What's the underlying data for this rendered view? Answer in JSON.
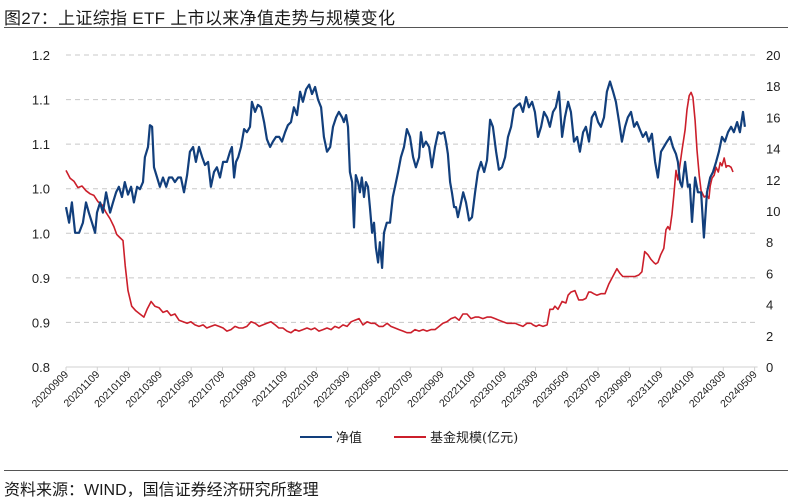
{
  "header": {
    "title": "图27：上证综指 ETF 上市以来净值走势与规模变化"
  },
  "footer": {
    "source": "资料来源：WIND，国信证券经济研究所整理"
  },
  "colors": {
    "nav_line": "#123f7c",
    "scale_line": "#cc1f2b",
    "grid": "#c8c8c8",
    "axis": "#d0d0d0"
  },
  "legend": {
    "items": [
      {
        "label": "净值",
        "color": "#123f7c"
      },
      {
        "label": "基金规模(亿元)",
        "color": "#cc1f2b"
      }
    ]
  },
  "chart_data": {
    "type": "line",
    "title": "上证综指 ETF 上市以来净值走势与规模变化",
    "xlabel": "",
    "ylabel_left": "净值",
    "ylabel_right": "基金规模(亿元)",
    "grid": true,
    "legend_position": "bottom",
    "ylim_left": [
      0.8,
      1.2
    ],
    "ylim_right": [
      0,
      20
    ],
    "left_tick_labels": [
      "1.2",
      "1.1",
      "1.1",
      "1.0",
      "1.0",
      "0.9",
      "0.9",
      "0.8"
    ],
    "right_tick_labels": [
      "20",
      "18",
      "16",
      "14",
      "12",
      "10",
      "8",
      "6",
      "4",
      "2",
      "0"
    ],
    "x_tick_labels": [
      "20200909",
      "20201109",
      "20210109",
      "20210309",
      "20210509",
      "20210709",
      "20210909",
      "20211109",
      "20220109",
      "20220309",
      "20220509",
      "20220709",
      "20220909",
      "20221109",
      "20230109",
      "20230309",
      "20230509",
      "20230709",
      "20230909",
      "20231109",
      "20240109",
      "20240309",
      "20240509"
    ],
    "x_range_index": [
      0,
      22.1
    ],
    "series": [
      {
        "name": "净值",
        "axis": "left",
        "x_index": [
          0,
          0.1,
          0.19,
          0.29,
          0.42,
          0.54,
          0.64,
          0.73,
          0.83,
          0.93,
          0.99,
          1.09,
          1.18,
          1.28,
          1.41,
          1.5,
          1.6,
          1.69,
          1.79,
          1.88,
          1.98,
          2.08,
          2.17,
          2.27,
          2.36,
          2.46,
          2.52,
          2.62,
          2.68,
          2.75,
          2.81,
          2.91,
          3.0,
          3.1,
          3.2,
          3.29,
          3.39,
          3.48,
          3.58,
          3.67,
          3.77,
          3.87,
          3.96,
          4.06,
          4.15,
          4.25,
          4.35,
          4.44,
          4.54,
          4.63,
          4.73,
          4.82,
          4.92,
          5.02,
          5.14,
          5.24,
          5.3,
          5.37,
          5.43,
          5.5,
          5.59,
          5.69,
          5.78,
          5.88,
          5.94,
          6.04,
          6.13,
          6.23,
          6.33,
          6.42,
          6.52,
          6.61,
          6.71,
          6.81,
          6.9,
          7.0,
          7.09,
          7.19,
          7.28,
          7.38,
          7.48,
          7.57,
          7.67,
          7.77,
          7.86,
          7.96,
          8.05,
          8.15,
          8.24,
          8.34,
          8.44,
          8.53,
          8.63,
          8.72,
          8.82,
          8.88,
          8.95,
          9.01,
          9.07,
          9.14,
          9.2,
          9.26,
          9.33,
          9.39,
          9.45,
          9.52,
          9.58,
          9.65,
          9.71,
          9.78,
          9.84,
          9.9,
          9.97,
          10.03,
          10.1,
          10.16,
          10.25,
          10.35,
          10.44,
          10.51,
          10.61,
          10.7,
          10.8,
          10.89,
          10.99,
          11.09,
          11.18,
          11.28,
          11.34,
          11.41,
          11.5,
          11.6,
          11.69,
          11.79,
          11.89,
          11.98,
          12.08,
          12.14,
          12.2,
          12.27,
          12.33,
          12.4,
          12.46,
          12.52,
          12.59,
          12.69,
          12.78,
          12.88,
          12.97,
          13.07,
          13.16,
          13.26,
          13.36,
          13.45,
          13.55,
          13.64,
          13.74,
          13.83,
          13.93,
          14.03,
          14.12,
          14.22,
          14.31,
          14.41,
          14.5,
          14.6,
          14.7,
          14.79,
          14.89,
          14.98,
          15.08,
          15.18,
          15.27,
          15.37,
          15.46,
          15.56,
          15.65,
          15.75,
          15.85,
          15.94,
          16.04,
          16.13,
          16.23,
          16.33,
          16.42,
          16.52,
          16.61,
          16.71,
          16.8,
          16.9,
          17.0,
          17.09,
          17.19,
          17.28,
          17.38,
          17.48,
          17.57,
          17.67,
          17.76,
          17.86,
          17.95,
          18.05,
          18.15,
          18.24,
          18.34,
          18.43,
          18.53,
          18.62,
          18.72,
          18.82,
          18.91,
          19.01,
          19.1,
          19.2,
          19.3,
          19.39,
          19.49,
          19.55,
          19.62,
          19.68,
          19.78,
          19.87,
          19.93,
          20.0,
          20.1,
          20.19,
          20.29,
          20.38,
          20.48,
          20.58,
          20.67,
          20.77,
          20.86,
          20.96,
          21.05,
          21.15,
          21.25,
          21.34,
          21.44,
          21.53,
          21.63,
          21.69
        ],
        "values": [
          1.005,
          0.985,
          1.011,
          0.972,
          0.972,
          0.985,
          1.011,
          0.998,
          0.985,
          0.972,
          0.998,
          1.011,
          0.998,
          1.024,
          0.998,
          1.011,
          1.024,
          1.031,
          1.018,
          1.037,
          1.021,
          1.031,
          1.011,
          1.031,
          1.028,
          1.037,
          1.069,
          1.082,
          1.11,
          1.108,
          1.056,
          1.043,
          1.031,
          1.043,
          1.031,
          1.043,
          1.043,
          1.037,
          1.043,
          1.043,
          1.024,
          1.046,
          1.076,
          1.082,
          1.063,
          1.082,
          1.069,
          1.059,
          1.063,
          1.031,
          1.05,
          1.056,
          1.043,
          1.063,
          1.063,
          1.076,
          1.082,
          1.043,
          1.063,
          1.069,
          1.082,
          1.105,
          1.101,
          1.108,
          1.14,
          1.127,
          1.136,
          1.133,
          1.114,
          1.092,
          1.082,
          1.089,
          1.095,
          1.095,
          1.089,
          1.101,
          1.11,
          1.114,
          1.133,
          1.123,
          1.153,
          1.14,
          1.156,
          1.162,
          1.15,
          1.159,
          1.143,
          1.133,
          1.095,
          1.076,
          1.082,
          1.108,
          1.12,
          1.127,
          1.12,
          1.114,
          1.123,
          1.108,
          1.05,
          1.037,
          0.979,
          1.046,
          1.037,
          1.024,
          1.043,
          1.018,
          1.037,
          1.031,
          1.005,
          0.972,
          0.985,
          0.953,
          0.934,
          0.96,
          0.927,
          0.972,
          0.985,
          0.985,
          1.018,
          1.031,
          1.05,
          1.069,
          1.082,
          1.105,
          1.095,
          1.069,
          1.056,
          1.069,
          1.101,
          1.082,
          1.089,
          1.082,
          1.056,
          1.082,
          1.101,
          1.099,
          1.101,
          1.089,
          1.073,
          1.037,
          1.024,
          1.005,
          1.005,
          0.992,
          1.005,
          1.024,
          1.011,
          0.988,
          0.992,
          1.024,
          1.05,
          1.063,
          1.05,
          1.065,
          1.117,
          1.108,
          1.076,
          1.053,
          1.056,
          1.069,
          1.095,
          1.108,
          1.131,
          1.135,
          1.138,
          1.127,
          1.146,
          1.133,
          1.14,
          1.127,
          1.095,
          1.108,
          1.127,
          1.12,
          1.108,
          1.127,
          1.133,
          1.153,
          1.095,
          1.12,
          1.14,
          1.127,
          1.089,
          1.095,
          1.076,
          1.101,
          1.108,
          1.089,
          1.12,
          1.127,
          1.114,
          1.108,
          1.12,
          1.153,
          1.166,
          1.153,
          1.14,
          1.114,
          1.089,
          1.108,
          1.12,
          1.127,
          1.108,
          1.114,
          1.104,
          1.095,
          1.101,
          1.089,
          1.099,
          1.063,
          1.043,
          1.076,
          1.082,
          1.089,
          1.095,
          1.082,
          1.073,
          1.063,
          1.037,
          1.031,
          1.063,
          1.031,
          1.034,
          0.986,
          1.043,
          1.024,
          1.024,
          0.966,
          1.024,
          1.043,
          1.05,
          1.063,
          1.076,
          1.095,
          1.089,
          1.101,
          1.108,
          1.101,
          1.114,
          1.101,
          1.127,
          1.108,
          1.101,
          1.133,
          1.146,
          1.15,
          1.143
        ]
      },
      {
        "name": "基金规模(亿元)",
        "axis": "right",
        "x_index": [
          0,
          0.13,
          0.26,
          0.38,
          0.51,
          0.64,
          0.77,
          0.89,
          1.02,
          1.15,
          1.28,
          1.41,
          1.53,
          1.62,
          1.72,
          1.82,
          1.89,
          1.98,
          2.1,
          2.23,
          2.36,
          2.49,
          2.59,
          2.72,
          2.84,
          2.97,
          3.1,
          3.23,
          3.35,
          3.48,
          3.61,
          3.74,
          3.87,
          3.99,
          4.12,
          4.25,
          4.38,
          4.5,
          4.63,
          4.76,
          4.89,
          5.02,
          5.14,
          5.27,
          5.4,
          5.53,
          5.65,
          5.78,
          5.91,
          6.04,
          6.17,
          6.29,
          6.42,
          6.55,
          6.68,
          6.8,
          6.93,
          7.06,
          7.19,
          7.32,
          7.44,
          7.57,
          7.7,
          7.83,
          7.95,
          8.08,
          8.21,
          8.34,
          8.47,
          8.59,
          8.72,
          8.85,
          8.98,
          9.11,
          9.23,
          9.36,
          9.49,
          9.62,
          9.74,
          9.87,
          10.0,
          10.13,
          10.26,
          10.38,
          10.51,
          10.64,
          10.77,
          10.89,
          11.02,
          11.15,
          11.28,
          11.41,
          11.53,
          11.66,
          11.79,
          11.92,
          12.04,
          12.17,
          12.3,
          12.43,
          12.56,
          12.68,
          12.81,
          12.94,
          13.07,
          13.19,
          13.32,
          13.45,
          13.58,
          13.71,
          13.83,
          13.96,
          14.09,
          14.22,
          14.35,
          14.47,
          14.6,
          14.73,
          14.86,
          14.92,
          15.02,
          15.11,
          15.24,
          15.37,
          15.46,
          15.56,
          15.62,
          15.72,
          15.85,
          15.97,
          16.04,
          16.13,
          16.26,
          16.38,
          16.51,
          16.61,
          16.7,
          16.77,
          16.86,
          16.96,
          17.09,
          17.22,
          17.34,
          17.47,
          17.6,
          17.7,
          17.79,
          17.92,
          18.05,
          18.18,
          18.3,
          18.4,
          18.49,
          18.59,
          18.69,
          18.78,
          18.84,
          18.91,
          19.0,
          19.1,
          19.17,
          19.23,
          19.29,
          19.36,
          19.42,
          19.49,
          19.55,
          19.68,
          19.78,
          19.84,
          19.91,
          19.97,
          20.03,
          20.1,
          20.16,
          20.23,
          20.29,
          20.39,
          20.48,
          20.54,
          20.58,
          20.64,
          20.71,
          20.77,
          20.84,
          20.9,
          20.96,
          21.03,
          21.09,
          21.12,
          21.18,
          21.25,
          21.31
        ],
        "values": [
          12.6,
          12.1,
          11.9,
          11.5,
          11.6,
          11.3,
          11.1,
          11.0,
          10.6,
          10.4,
          9.9,
          9.5,
          9.0,
          8.5,
          8.3,
          8.1,
          6.5,
          4.9,
          3.9,
          3.6,
          3.4,
          3.2,
          3.7,
          4.2,
          3.9,
          3.8,
          3.5,
          3.6,
          3.3,
          3.4,
          3.0,
          2.9,
          2.8,
          2.9,
          2.7,
          2.6,
          2.7,
          2.5,
          2.6,
          2.7,
          2.6,
          2.5,
          2.3,
          2.4,
          2.6,
          2.5,
          2.5,
          2.6,
          2.9,
          2.8,
          2.6,
          2.7,
          2.8,
          2.9,
          2.7,
          2.5,
          2.5,
          2.3,
          2.2,
          2.4,
          2.3,
          2.4,
          2.5,
          2.4,
          2.5,
          2.3,
          2.4,
          2.5,
          2.4,
          2.6,
          2.5,
          2.7,
          2.6,
          2.9,
          3.0,
          3.1,
          2.7,
          2.9,
          2.8,
          2.8,
          2.6,
          2.6,
          2.8,
          2.6,
          2.5,
          2.4,
          2.3,
          2.2,
          2.2,
          2.4,
          2.3,
          2.4,
          2.3,
          2.4,
          2.4,
          2.6,
          2.8,
          2.9,
          3.1,
          3.2,
          3.0,
          3.4,
          3.4,
          3.1,
          3.2,
          3.2,
          3.1,
          3.2,
          3.2,
          3.1,
          3.0,
          2.9,
          2.8,
          2.8,
          2.8,
          2.7,
          2.6,
          2.8,
          2.8,
          2.7,
          2.6,
          2.7,
          2.6,
          2.7,
          3.7,
          3.7,
          3.9,
          3.7,
          4.2,
          4.1,
          4.6,
          4.8,
          4.9,
          4.3,
          4.3,
          4.4,
          4.8,
          4.8,
          4.7,
          4.6,
          4.7,
          4.7,
          5.3,
          5.8,
          6.3,
          6.0,
          5.8,
          5.8,
          5.8,
          5.8,
          5.9,
          6.1,
          7.4,
          7.2,
          6.9,
          6.7,
          6.6,
          6.7,
          7.2,
          7.6,
          8.8,
          9.0,
          8.8,
          9.8,
          11.0,
          12.6,
          12.0,
          13.9,
          15.2,
          16.5,
          17.4,
          17.6,
          17.3,
          15.8,
          13.9,
          12.3,
          11.3,
          10.9,
          11.0,
          10.8,
          11.6,
          12.1,
          12.3,
          12.8,
          12.5,
          13.1,
          12.9,
          13.4,
          12.8,
          12.9,
          12.9,
          12.8,
          12.5,
          16.5,
          16.5,
          16.5
        ]
      }
    ]
  }
}
